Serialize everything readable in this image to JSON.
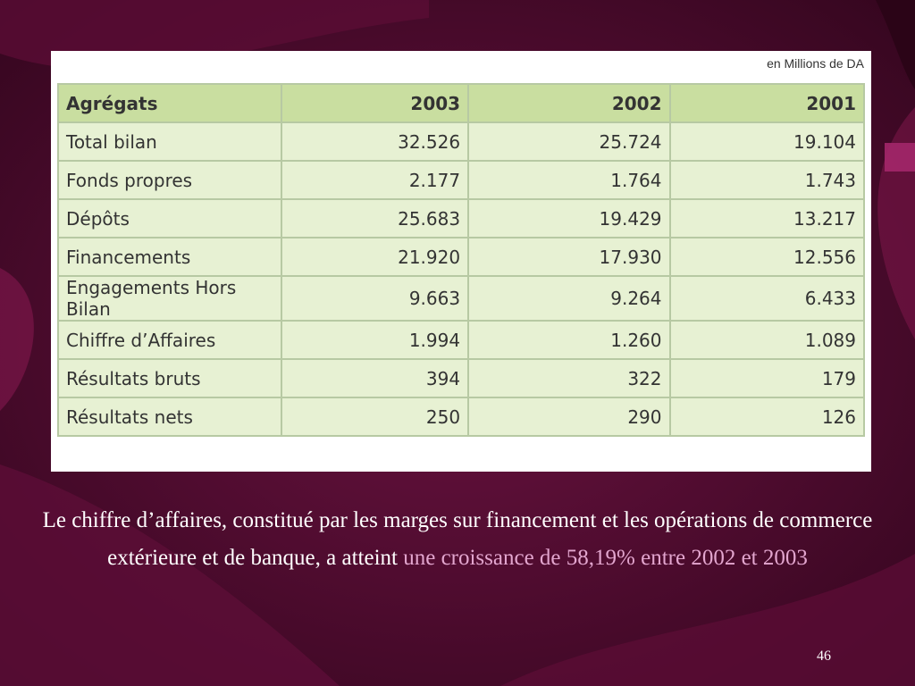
{
  "slide": {
    "unit_note": "en Millions de DA",
    "table": {
      "headers": [
        "Agrégats",
        "2003",
        "2002",
        "2001"
      ],
      "rows": [
        [
          "Total bilan",
          "32.526",
          "25.724",
          "19.104"
        ],
        [
          "Fonds propres",
          "2.177",
          "1.764",
          "1.743"
        ],
        [
          "Dépôts",
          "25.683",
          "19.429",
          "13.217"
        ],
        [
          "Financements",
          "21.920",
          "17.930",
          "12.556"
        ],
        [
          "Engagements Hors Bilan",
          "9.663",
          "9.264",
          "6.433"
        ],
        [
          "Chiffre d’Affaires",
          "1.994",
          "1.260",
          "1.089"
        ],
        [
          "Résultats bruts",
          "394",
          "322",
          "179"
        ],
        [
          "Résultats nets",
          "250",
          "290",
          "126"
        ]
      ]
    },
    "caption": {
      "text": "Le chiffre d’affaires, constitué par les marges sur financement et les opérations de commerce extérieure et de banque, a atteint ",
      "highlight": "une croissance de 58,19% entre 2002 et 2003"
    },
    "page_number": "46"
  },
  "colors": {
    "background": "#4a0a2c",
    "table_header": "#c9dea0",
    "table_cell": "#e7f1d3",
    "table_border": "#b7c9a3",
    "caption_highlight": "#e3a6cf"
  }
}
